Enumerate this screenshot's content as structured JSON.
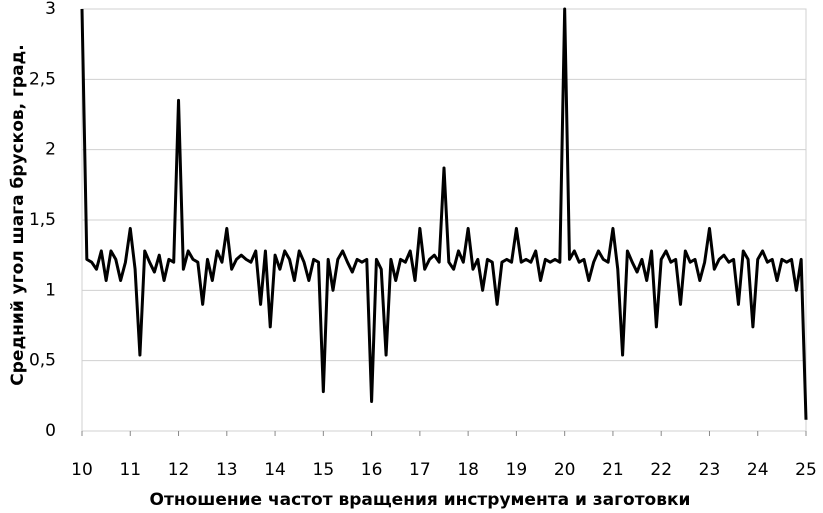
{
  "chart_data": {
    "type": "line",
    "xlabel": "Отношение частот вращения инструмента и заготовки",
    "ylabel": "Средний угол шага брусков, град.",
    "x": [
      10,
      10.1,
      10.2,
      10.3,
      10.4,
      10.5,
      10.6,
      10.7,
      10.8,
      10.9,
      11,
      11.1,
      11.2,
      11.3,
      11.4,
      11.5,
      11.6,
      11.7,
      11.8,
      11.9,
      12,
      12.1,
      12.2,
      12.3,
      12.4,
      12.5,
      12.6,
      12.7,
      12.8,
      12.9,
      13,
      13.1,
      13.2,
      13.3,
      13.4,
      13.5,
      13.6,
      13.7,
      13.8,
      13.9,
      14,
      14.1,
      14.2,
      14.3,
      14.4,
      14.5,
      14.6,
      14.7,
      14.8,
      14.9,
      15,
      15.1,
      15.2,
      15.3,
      15.4,
      15.5,
      15.6,
      15.7,
      15.8,
      15.9,
      16,
      16.1,
      16.2,
      16.3,
      16.4,
      16.5,
      16.6,
      16.7,
      16.8,
      16.9,
      17,
      17.1,
      17.2,
      17.3,
      17.4,
      17.5,
      17.6,
      17.7,
      17.8,
      17.9,
      18,
      18.1,
      18.2,
      18.3,
      18.4,
      18.5,
      18.6,
      18.7,
      18.8,
      18.9,
      19,
      19.1,
      19.2,
      19.3,
      19.4,
      19.5,
      19.6,
      19.7,
      19.8,
      19.9,
      20,
      20.1,
      20.2,
      20.3,
      20.4,
      20.5,
      20.6,
      20.7,
      20.8,
      20.9,
      21,
      21.1,
      21.2,
      21.3,
      21.4,
      21.5,
      21.6,
      21.7,
      21.8,
      21.9,
      22,
      22.1,
      22.2,
      22.3,
      22.4,
      22.5,
      22.6,
      22.7,
      22.8,
      22.9,
      23,
      23.1,
      23.2,
      23.3,
      23.4,
      23.5,
      23.6,
      23.7,
      23.8,
      23.9,
      24,
      24.1,
      24.2,
      24.3,
      24.4,
      24.5,
      24.6,
      24.7,
      24.8,
      24.9,
      25
    ],
    "series": [
      {
        "color": "#000000",
        "values": [
          3,
          1.22,
          1.2,
          1.15,
          1.28,
          1.07,
          1.28,
          1.22,
          1.07,
          1.2,
          1.44,
          1.15,
          0.54,
          1.28,
          1.2,
          1.13,
          1.25,
          1.07,
          1.22,
          1.2,
          2.35,
          1.15,
          1.28,
          1.22,
          1.2,
          0.9,
          1.22,
          1.07,
          1.28,
          1.2,
          1.44,
          1.15,
          1.22,
          1.25,
          1.22,
          1.2,
          1.28,
          0.9,
          1.28,
          0.74,
          1.25,
          1.15,
          1.28,
          1.22,
          1.07,
          1.28,
          1.2,
          1.07,
          1.22,
          1.2,
          0.28,
          1.22,
          1.0,
          1.22,
          1.28,
          1.2,
          1.13,
          1.22,
          1.2,
          1.22,
          0.21,
          1.22,
          1.15,
          0.54,
          1.22,
          1.07,
          1.22,
          1.2,
          1.28,
          1.07,
          1.44,
          1.15,
          1.22,
          1.25,
          1.2,
          1.87,
          1.2,
          1.15,
          1.28,
          1.2,
          1.44,
          1.15,
          1.22,
          1.0,
          1.22,
          1.2,
          0.9,
          1.2,
          1.22,
          1.2,
          1.44,
          1.2,
          1.22,
          1.2,
          1.28,
          1.07,
          1.22,
          1.2,
          1.22,
          1.2,
          3,
          1.22,
          1.28,
          1.2,
          1.22,
          1.07,
          1.2,
          1.28,
          1.22,
          1.2,
          1.44,
          1.15,
          0.54,
          1.28,
          1.2,
          1.13,
          1.22,
          1.07,
          1.28,
          0.74,
          1.22,
          1.28,
          1.2,
          1.22,
          0.9,
          1.28,
          1.2,
          1.22,
          1.07,
          1.2,
          1.44,
          1.15,
          1.22,
          1.25,
          1.2,
          1.22,
          0.9,
          1.28,
          1.22,
          0.74,
          1.22,
          1.28,
          1.2,
          1.22,
          1.07,
          1.22,
          1.2,
          1.22,
          1.0,
          1.22,
          0.08
        ]
      }
    ],
    "xlim": [
      10,
      25
    ],
    "xticks": [
      10,
      11,
      12,
      13,
      14,
      15,
      16,
      17,
      18,
      19,
      20,
      21,
      22,
      23,
      24,
      25
    ],
    "ylim": [
      0,
      3
    ],
    "yticks": [
      0,
      {
        "value": 0.5,
        "label": "0,5"
      },
      1,
      {
        "value": 1.5,
        "label": "1,5"
      },
      2,
      {
        "value": 2.5,
        "label": "2,5"
      },
      3
    ],
    "grid": true
  }
}
